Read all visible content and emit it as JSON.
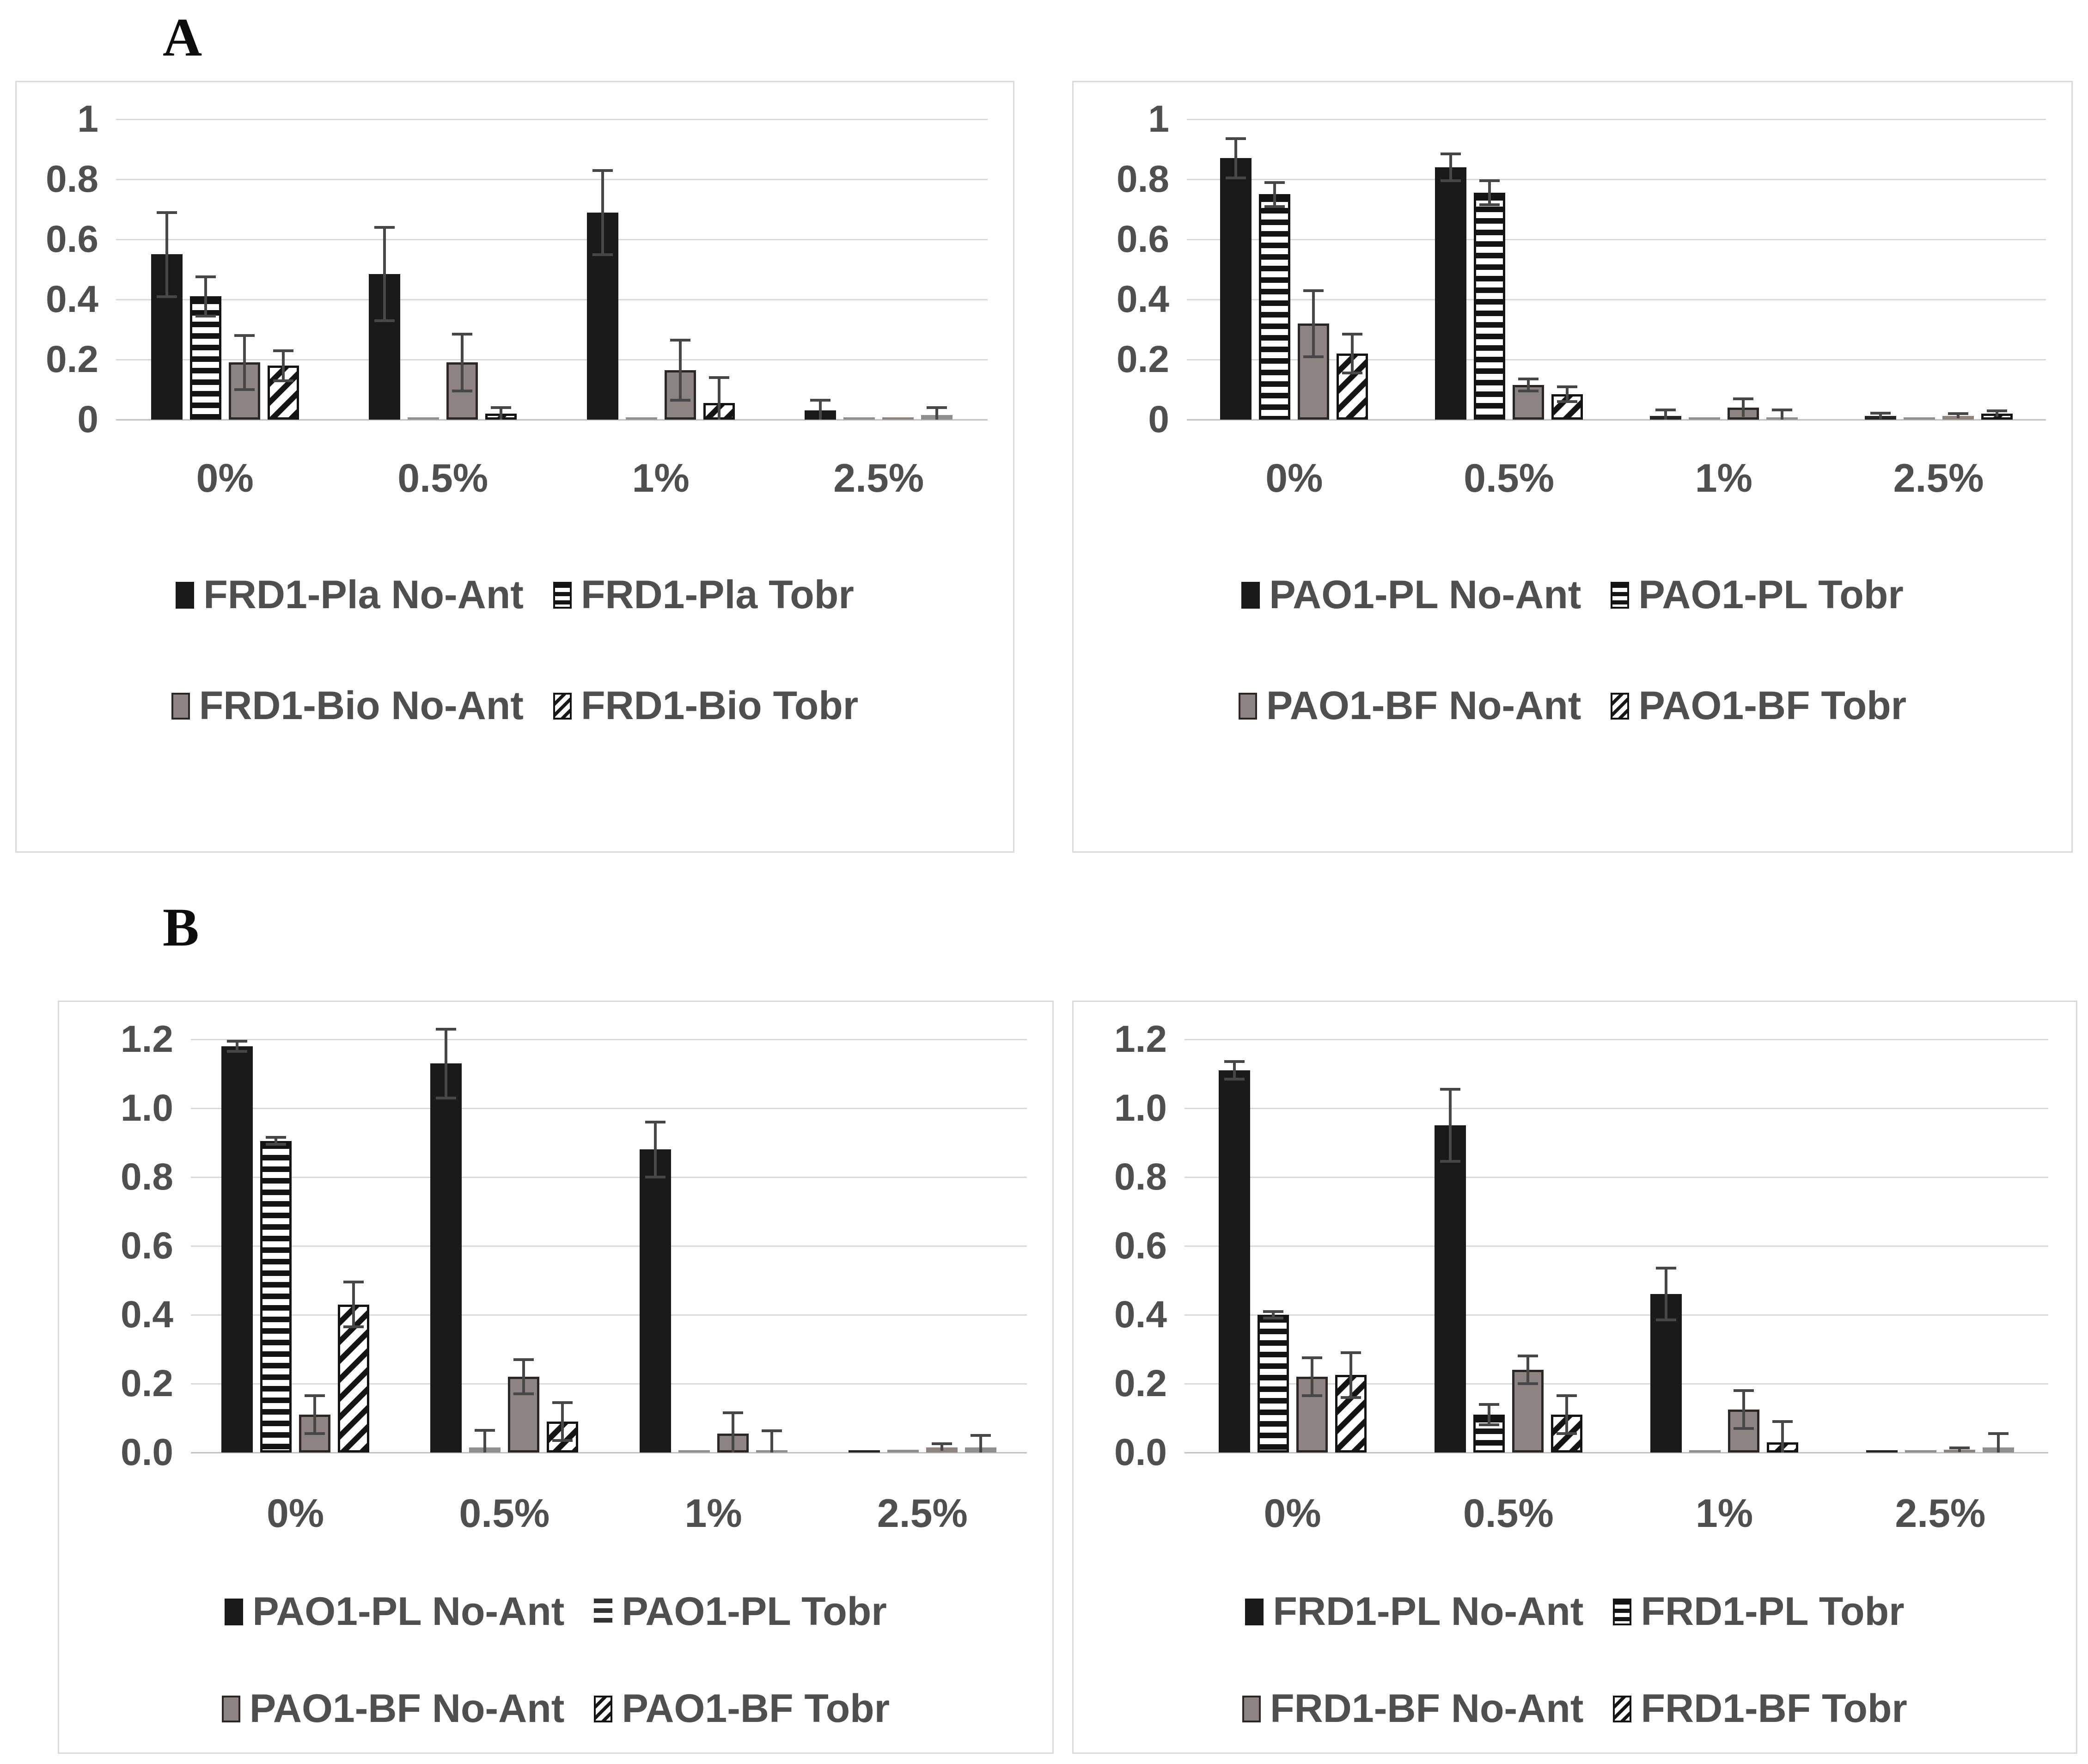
{
  "figure": {
    "panel_a_label": "A",
    "panel_b_label": "B"
  },
  "colors": {
    "bar_black": "#1a1a1a",
    "bar_gray": "#8b8480",
    "stripe_dark": "#141414",
    "text_gray": "#4f4f4f",
    "gridline": "#d9d9d9",
    "axis_line": "#c2c2c2",
    "error_bar": "#474747",
    "panel_border": "#d9d9d9",
    "panel_label": "#0c0c0c"
  },
  "chart_data": [
    {
      "id": "a_left",
      "panel": "A",
      "position": "top-left",
      "type": "bar",
      "title": "",
      "xlabel": "",
      "ylabel": "",
      "grid": true,
      "legend_position": "bottom",
      "categories": [
        "0%",
        "0.5%",
        "1%",
        "2.5%"
      ],
      "y_ticks": [
        "1",
        "0.8",
        "0.6",
        "0.4",
        "0.2",
        "0"
      ],
      "ylim": [
        0,
        1
      ],
      "series": [
        {
          "name": "FRD1-Pla No-Ant",
          "pattern": "solid",
          "values": [
            0.55,
            0.485,
            0.69,
            0.03
          ],
          "errors": [
            0.14,
            0.155,
            0.14,
            0.035
          ]
        },
        {
          "name": "FRD1-Pla Tobr",
          "pattern": "hstripe",
          "values": [
            0.41,
            0.004,
            0.006,
            0.004
          ],
          "errors": [
            0.065,
            0,
            0,
            0
          ]
        },
        {
          "name": "FRD1-Bio No-Ant",
          "pattern": "gray",
          "values": [
            0.19,
            0.19,
            0.165,
            0.007
          ],
          "errors": [
            0.09,
            0.095,
            0.1,
            0
          ]
        },
        {
          "name": "FRD1-Bio Tobr",
          "pattern": "diag",
          "values": [
            0.18,
            0.02,
            0.055,
            0.015
          ],
          "errors": [
            0.05,
            0.02,
            0.085,
            0.025
          ]
        }
      ]
    },
    {
      "id": "a_right",
      "panel": "A",
      "position": "top-right",
      "type": "bar",
      "title": "",
      "xlabel": "",
      "ylabel": "",
      "grid": true,
      "legend_position": "bottom",
      "categories": [
        "0%",
        "0.5%",
        "1%",
        "2.5%"
      ],
      "y_ticks": [
        "1",
        "0.8",
        "0.6",
        "0.4",
        "0.2",
        "0"
      ],
      "ylim": [
        0,
        1
      ],
      "series": [
        {
          "name": "PAO1-PL No-Ant",
          "pattern": "solid",
          "values": [
            0.87,
            0.84,
            0.012,
            0.012
          ],
          "errors": [
            0.065,
            0.045,
            0.02,
            0.01
          ]
        },
        {
          "name": "PAO1-PL Tobr",
          "pattern": "hstripe",
          "values": [
            0.75,
            0.755,
            0.005,
            0.004
          ],
          "errors": [
            0.04,
            0.04,
            0,
            0
          ]
        },
        {
          "name": "PAO1-BF No-Ant",
          "pattern": "gray",
          "values": [
            0.32,
            0.115,
            0.04,
            0.012
          ],
          "errors": [
            0.11,
            0.02,
            0.03,
            0.008
          ]
        },
        {
          "name": "PAO1-BF Tobr",
          "pattern": "diag",
          "values": [
            0.22,
            0.085,
            0.008,
            0.02
          ],
          "errors": [
            0.065,
            0.025,
            0.025,
            0.01
          ]
        }
      ]
    },
    {
      "id": "b_left",
      "panel": "B",
      "position": "bottom-left",
      "type": "bar",
      "title": "",
      "xlabel": "",
      "ylabel": "",
      "grid": true,
      "legend_position": "bottom",
      "categories": [
        "0%",
        "0.5%",
        "1%",
        "2.5%"
      ],
      "y_ticks": [
        "1.2",
        "1.0",
        "0.8",
        "0.6",
        "0.4",
        "0.2",
        "0.0"
      ],
      "ylim": [
        0,
        1.2
      ],
      "series": [
        {
          "name": "PAO1-PL No-Ant",
          "pattern": "solid",
          "values": [
            1.18,
            1.13,
            0.88,
            0.004
          ],
          "errors": [
            0.015,
            0.1,
            0.08,
            0
          ]
        },
        {
          "name": "PAO1-PL Tobr",
          "pattern": "hstripe",
          "legend_marker": "lines",
          "values": [
            0.905,
            0.015,
            0.003,
            0.008
          ],
          "errors": [
            0.01,
            0.05,
            0,
            0.004
          ]
        },
        {
          "name": "PAO1-BF No-Ant",
          "pattern": "gray",
          "values": [
            0.11,
            0.22,
            0.055,
            0.015
          ],
          "errors": [
            0.055,
            0.05,
            0.06,
            0.01
          ]
        },
        {
          "name": "PAO1-BF Tobr",
          "pattern": "diag",
          "values": [
            0.43,
            0.09,
            0.005,
            0.015
          ],
          "errors": [
            0.065,
            0.055,
            0.058,
            0.035
          ]
        }
      ]
    },
    {
      "id": "b_right",
      "panel": "B",
      "position": "bottom-right",
      "type": "bar",
      "title": "",
      "xlabel": "",
      "ylabel": "",
      "grid": true,
      "legend_position": "bottom",
      "categories": [
        "0%",
        "0.5%",
        "1%",
        "2.5%"
      ],
      "y_ticks": [
        "1.2",
        "1.0",
        "0.8",
        "0.6",
        "0.4",
        "0.2",
        "0.0"
      ],
      "ylim": [
        0,
        1.2
      ],
      "series": [
        {
          "name": "FRD1-PL No-Ant",
          "pattern": "solid",
          "values": [
            1.11,
            0.95,
            0.46,
            0.004
          ],
          "errors": [
            0.025,
            0.105,
            0.075,
            0
          ]
        },
        {
          "name": "FRD1-PL Tobr",
          "pattern": "hstripe",
          "values": [
            0.4,
            0.11,
            0.003,
            0.006
          ],
          "errors": [
            0.01,
            0.03,
            0,
            0
          ]
        },
        {
          "name": "FRD1-BF No-Ant",
          "pattern": "gray",
          "values": [
            0.22,
            0.24,
            0.125,
            0.008
          ],
          "errors": [
            0.055,
            0.04,
            0.055,
            0.006
          ]
        },
        {
          "name": "FRD1-BF Tobr",
          "pattern": "diag",
          "values": [
            0.225,
            0.11,
            0.03,
            0.015
          ],
          "errors": [
            0.065,
            0.055,
            0.06,
            0.04
          ]
        }
      ]
    }
  ]
}
